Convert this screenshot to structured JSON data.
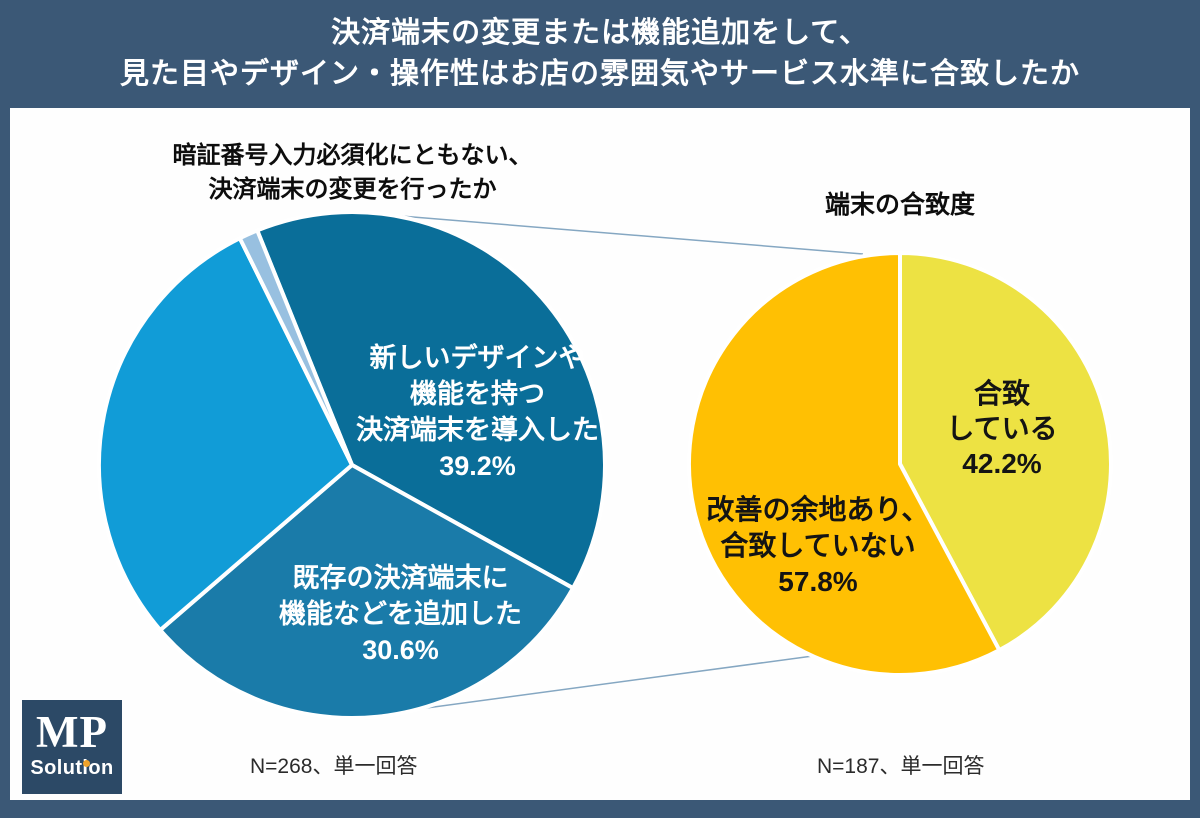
{
  "frame": {
    "title_line1": "決済端末の変更または機能追加をして、",
    "title_line2": "見た目やデザイン・操作性はお店の雰囲気やサービス水準に合致したか"
  },
  "left_chart": {
    "title_line1": "暗証番号入力必須化にともない、",
    "title_line2": "決済端末の変更を行ったか",
    "n_label": "N=268、単一回答",
    "slice1_label": {
      "line1": "新しいデザインや",
      "line2": "機能を持つ",
      "line3": "決済端末を導入した",
      "pct": "39.2%"
    },
    "slice2_label": {
      "line1": "既存の決済端末に",
      "line2": "機能などを追加した",
      "pct": "30.6%"
    }
  },
  "right_chart": {
    "title": "端末の合致度",
    "n_label": "N=187、単一回答",
    "slice1_label": {
      "line1": "合致",
      "line2": "している",
      "pct": "42.2%"
    },
    "slice2_label": {
      "line1": "改善の余地あり、",
      "line2": "合致していない",
      "pct": "57.8%"
    }
  },
  "logo": {
    "line1": "MP",
    "line2": "Solution"
  },
  "colors": {
    "frame_background": "#3B5876",
    "canvas_background": "#FEFEFE",
    "title_text": "#FFFFFF",
    "chart_title_text": "#0D0D0D",
    "connector_line": "#85A7C2",
    "slice_divider": "#FFFFFF",
    "left_slice1": "#0A6E99",
    "left_slice2": "#1A7BA9",
    "left_slice3": "#119CD7",
    "left_slice4": "#98C0E0",
    "right_slice_yellow": "#EDE243",
    "right_slice_orange": "#FFC003",
    "logo_background": "#2C4966",
    "logo_dot": "#EFA32B"
  },
  "chart_data": [
    {
      "type": "pie",
      "title": "暗証番号入力必須化にともない、決済端末の変更を行ったか",
      "n_label": "N=268、単一回答",
      "start_angle_deg": -22,
      "direction": "clockwise",
      "slices": [
        {
          "label": "新しいデザインや機能を持つ決済端末を導入した",
          "value": 39.2,
          "color": "#0A6E99"
        },
        {
          "label": "既存の決済端末に機能などを追加した",
          "value": 30.6,
          "color": "#1A7BA9"
        },
        {
          "label": "unlabeled (estimated)",
          "value": 29.0,
          "color": "#119CD7"
        },
        {
          "label": "unlabeled thin sliver (estimated)",
          "value": 1.2,
          "color": "#98C0E0"
        }
      ]
    },
    {
      "type": "pie",
      "title": "端末の合致度",
      "n_label": "N=187、単一回答",
      "start_angle_deg": 0,
      "direction": "clockwise",
      "slices": [
        {
          "label": "合致している",
          "value": 42.2,
          "color": "#EDE243"
        },
        {
          "label": "改善の余地あり、合致していない",
          "value": 57.8,
          "color": "#FFC003"
        }
      ]
    }
  ]
}
